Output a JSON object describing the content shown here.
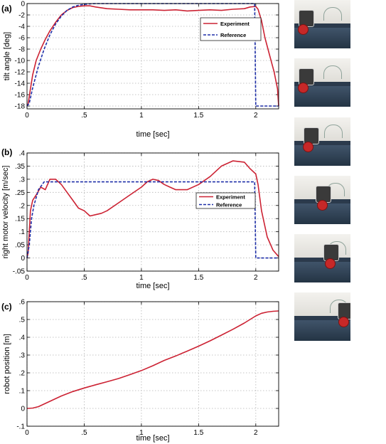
{
  "charts": [
    {
      "id": "a",
      "panel_label": "(a)",
      "xlabel": "time [sec]",
      "ylabel": "tilt angle [deg]"
    },
    {
      "id": "b",
      "panel_label": "(b)",
      "xlabel": "time [sec]",
      "ylabel": "right motor velocity [m/sec]"
    },
    {
      "id": "c",
      "panel_label": "(c)",
      "xlabel": "time [sec]",
      "ylabel": "robot position [m]"
    }
  ],
  "chart_data": [
    {
      "type": "line",
      "panel": "(a)",
      "xlabel": "time [sec]",
      "ylabel": "tilt angle [deg]",
      "xlim": [
        0,
        2.2
      ],
      "ylim": [
        -18.5,
        0
      ],
      "xticks": [
        0,
        0.5,
        1,
        1.5,
        2
      ],
      "yticks": [
        0,
        -2,
        -4,
        -6,
        -8,
        -10,
        -12,
        -14,
        -16,
        -18
      ],
      "grid": true,
      "legend": "upper-right",
      "series": [
        {
          "name": "Experiment",
          "color": "#cc2233",
          "style": "solid",
          "x": [
            0,
            0.01,
            0.03,
            0.05,
            0.08,
            0.12,
            0.16,
            0.2,
            0.25,
            0.3,
            0.35,
            0.4,
            0.45,
            0.5,
            0.55,
            0.6,
            0.7,
            0.8,
            0.9,
            1.0,
            1.1,
            1.2,
            1.3,
            1.4,
            1.5,
            1.6,
            1.7,
            1.8,
            1.9,
            1.95,
            2.0,
            2.02,
            2.05,
            2.08,
            2.12,
            2.16,
            2.19,
            2.2
          ],
          "y": [
            -18,
            -17.6,
            -15,
            -12.5,
            -10,
            -8,
            -6.3,
            -4.8,
            -3.3,
            -2,
            -1.2,
            -0.7,
            -0.5,
            -0.4,
            -0.4,
            -0.6,
            -0.9,
            -1,
            -1.1,
            -1.1,
            -1.1,
            -1.2,
            -1.1,
            -1.3,
            -1.2,
            -1.1,
            -1.2,
            -1,
            -0.9,
            -0.6,
            -0.5,
            -1,
            -3,
            -6,
            -9,
            -12,
            -15,
            -18
          ]
        },
        {
          "name": "Reference",
          "color": "#1e2fa8",
          "style": "dashed",
          "x": [
            0,
            0.02,
            0.05,
            0.1,
            0.15,
            0.2,
            0.25,
            0.3,
            0.35,
            0.4,
            0.45,
            0.5,
            0.55,
            0.6,
            1.99,
            2.0,
            2.2
          ],
          "y": [
            -18,
            -17.5,
            -14.8,
            -11,
            -8,
            -5.5,
            -3.6,
            -2.2,
            -1.2,
            -0.6,
            -0.3,
            -0.15,
            -0.05,
            0,
            0,
            -18,
            -18
          ]
        }
      ]
    },
    {
      "type": "line",
      "panel": "(b)",
      "xlabel": "time [sec]",
      "ylabel": "right motor velocity [m/sec]",
      "xlim": [
        0,
        2.2
      ],
      "ylim": [
        -0.05,
        0.4
      ],
      "xticks": [
        0,
        0.5,
        1,
        1.5,
        2
      ],
      "yticks": [
        -0.05,
        0,
        0.05,
        0.1,
        0.15,
        0.2,
        0.25,
        0.3,
        0.35,
        0.4
      ],
      "grid": true,
      "legend": "right",
      "series": [
        {
          "name": "Experiment",
          "color": "#cc2233",
          "style": "solid",
          "x": [
            0,
            0.01,
            0.02,
            0.03,
            0.05,
            0.08,
            0.12,
            0.16,
            0.2,
            0.25,
            0.3,
            0.35,
            0.4,
            0.45,
            0.5,
            0.55,
            0.6,
            0.65,
            0.7,
            0.8,
            0.9,
            1.0,
            1.05,
            1.1,
            1.15,
            1.2,
            1.25,
            1.3,
            1.4,
            1.5,
            1.6,
            1.7,
            1.8,
            1.9,
            1.95,
            2.0,
            2.02,
            2.05,
            2.1,
            2.15,
            2.2
          ],
          "y": [
            0,
            0.02,
            0.1,
            0.18,
            0.22,
            0.24,
            0.27,
            0.26,
            0.3,
            0.3,
            0.28,
            0.25,
            0.22,
            0.19,
            0.18,
            0.16,
            0.165,
            0.17,
            0.18,
            0.21,
            0.24,
            0.27,
            0.29,
            0.3,
            0.295,
            0.28,
            0.27,
            0.26,
            0.26,
            0.28,
            0.31,
            0.35,
            0.37,
            0.365,
            0.34,
            0.32,
            0.28,
            0.18,
            0.08,
            0.03,
            0.005
          ]
        },
        {
          "name": "Reference",
          "color": "#1e2fa8",
          "style": "dashed",
          "x": [
            0,
            0.02,
            0.04,
            0.06,
            0.1,
            0.15,
            1.99,
            2.0,
            2.2
          ],
          "y": [
            0,
            0.05,
            0.15,
            0.2,
            0.26,
            0.29,
            0.29,
            0,
            0
          ]
        }
      ]
    },
    {
      "type": "line",
      "panel": "(c)",
      "xlabel": "time [sec]",
      "ylabel": "robot position [m]",
      "xlim": [
        0,
        2.2
      ],
      "ylim": [
        -0.1,
        0.6
      ],
      "xticks": [
        0,
        0.5,
        1,
        1.5,
        2
      ],
      "yticks": [
        -0.1,
        0,
        0.1,
        0.2,
        0.3,
        0.4,
        0.5,
        0.6
      ],
      "grid": true,
      "series": [
        {
          "color": "#cc2233",
          "style": "solid",
          "x": [
            0,
            0.05,
            0.1,
            0.2,
            0.3,
            0.4,
            0.5,
            0.6,
            0.7,
            0.8,
            0.9,
            1.0,
            1.1,
            1.2,
            1.3,
            1.4,
            1.5,
            1.6,
            1.7,
            1.8,
            1.9,
            2.0,
            2.05,
            2.1,
            2.15,
            2.2
          ],
          "y": [
            0,
            0.002,
            0.01,
            0.04,
            0.07,
            0.095,
            0.115,
            0.133,
            0.15,
            0.168,
            0.19,
            0.213,
            0.24,
            0.27,
            0.295,
            0.322,
            0.35,
            0.38,
            0.412,
            0.445,
            0.48,
            0.52,
            0.535,
            0.542,
            0.546,
            0.548
          ]
        }
      ]
    }
  ],
  "photos": [
    {
      "robot_x": 10,
      "wheel_x": 8
    },
    {
      "robot_x": 10,
      "wheel_x": 8
    },
    {
      "robot_x": 22,
      "wheel_x": 20
    },
    {
      "robot_x": 50,
      "wheel_x": 52
    },
    {
      "robot_x": 68,
      "wheel_x": 70
    },
    {
      "robot_x": 100,
      "wheel_x": 102
    }
  ]
}
